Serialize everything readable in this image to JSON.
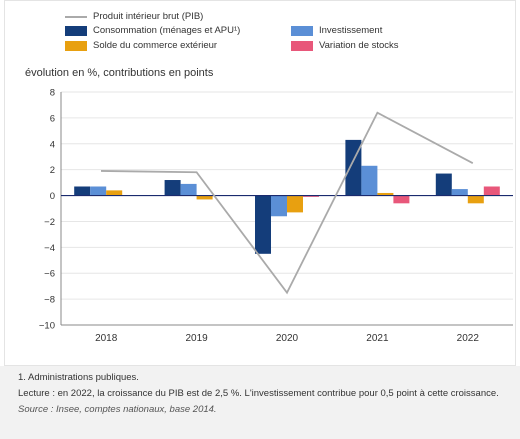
{
  "legend": {
    "gdp": "Produit intérieur brut (PIB)",
    "consumption": "Consommation (ménages et APU¹)",
    "investment": "Investissement",
    "trade": "Solde du commerce extérieur",
    "stocks": "Variation de stocks"
  },
  "axis_title": "évolution en %, contributions en points",
  "notes": {
    "footnote": "1. Administrations publiques.",
    "lecture": "Lecture : en 2022, la croissance du PIB est de 2,5 %. L'investissement contribue pour 0,5 point à cette croissance.",
    "source": "Source : Insee, comptes nationaux, base 2014."
  },
  "chart_data": {
    "type": "bar",
    "ylabel": "évolution en %, contributions en points",
    "categories": [
      "2018",
      "2019",
      "2020",
      "2021",
      "2022"
    ],
    "ylim": [
      -10,
      8
    ],
    "yticks": [
      8,
      6,
      4,
      2,
      0,
      -2,
      -4,
      -6,
      -8,
      -10
    ],
    "grid": true,
    "legend_position": "top",
    "series": [
      {
        "name": "Consommation (ménages et APU¹)",
        "kind": "bar",
        "color": "#143d7a",
        "values": [
          0.7,
          1.2,
          -4.5,
          4.3,
          1.7
        ]
      },
      {
        "name": "Investissement",
        "kind": "bar",
        "color": "#5b8fd6",
        "values": [
          0.7,
          0.9,
          -1.6,
          2.3,
          0.5
        ]
      },
      {
        "name": "Solde du commerce extérieur",
        "kind": "bar",
        "color": "#e8a010",
        "values": [
          0.4,
          -0.3,
          -1.3,
          0.2,
          -0.6
        ]
      },
      {
        "name": "Variation de stocks",
        "kind": "bar",
        "color": "#e8577a",
        "values": [
          0.0,
          0.0,
          -0.1,
          -0.6,
          0.7
        ]
      },
      {
        "name": "Produit intérieur brut (PIB)",
        "kind": "line",
        "color": "#aaaaaa",
        "values": [
          1.9,
          1.8,
          -7.5,
          6.4,
          2.5
        ]
      }
    ]
  }
}
